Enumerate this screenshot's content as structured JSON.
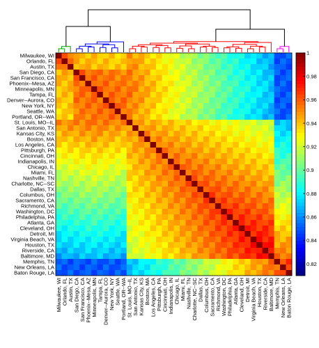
{
  "chart_data": {
    "type": "heatmap",
    "title": "",
    "xlabel": "",
    "ylabel": "",
    "labels": [
      "Milwaukee, WI",
      "Orlando, FL",
      "Austin, TX",
      "San Diego, CA",
      "San Francisco, CA",
      "Phoenix--Mesa, AZ",
      "Minneapolis, MN",
      "Tampa, FL",
      "Denver--Aurora, CO",
      "New York, NY",
      "Seattle, WA",
      "Portland, OR--WA",
      "St. Louis, MO--IL",
      "San Antonio, TX",
      "Kansas City, KS",
      "Boston, MA",
      "Los Angeles, CA",
      "Pittsburgh, PA",
      "Cincinnati, OH",
      "Indianapolis, IN",
      "Chicago, IL",
      "Miami, FL",
      "Nashville, TN",
      "Charlotte, NC--SC",
      "Dallas, TX",
      "Columbus, OH",
      "Sacramento, CA",
      "Richmond, VA",
      "Washington, DC",
      "Philadelphia, PA",
      "Atlanta, GA",
      "Cleveland, OH",
      "Detroit, MI",
      "Virginia Beach, VA",
      "Houston, TX",
      "Riverside, CA",
      "Baltimore, MD",
      "Memphis, TN",
      "New Orleans, LA",
      "Baton Rouge, LA"
    ],
    "groups": [
      {
        "color": "#00a000",
        "start": 0,
        "end": 2
      },
      {
        "color": "#0000ff",
        "start": 3,
        "end": 11
      },
      {
        "color": "#ff0000",
        "start": 12,
        "end": 36
      },
      {
        "color": "#ff00ff",
        "start": 37,
        "end": 39
      }
    ],
    "colorbar": {
      "min": 0.81,
      "max": 1,
      "ticks": [
        0.82,
        0.84,
        0.86,
        0.88,
        0.9,
        0.92,
        0.94,
        0.96,
        0.98,
        1
      ],
      "tick_labels": [
        "0.82",
        "0.84",
        "0.86",
        "0.88",
        "0.9",
        "0.92",
        "0.94",
        "0.96",
        "0.98",
        "1"
      ],
      "colormap": "jet"
    },
    "diagonal": 1
  }
}
